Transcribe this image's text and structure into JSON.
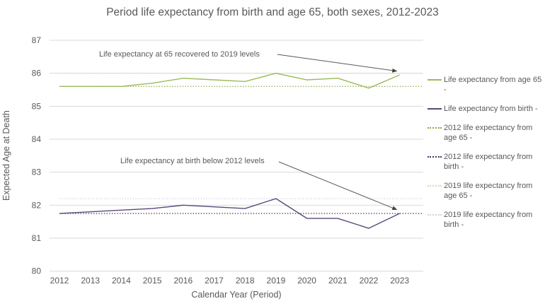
{
  "title": "Period life expectancy from birth and age 65, both sexes, 2012-2023",
  "colors": {
    "text": "#595959",
    "gridline": "#d9d9d9",
    "annotation_line": "#595959",
    "arrowhead": "#404040"
  },
  "chart_data": {
    "type": "line",
    "title": "Period life expectancy from birth and age 65, both sexes, 2012-2023",
    "xlabel": "Calendar Year (Period)",
    "ylabel": "Expected Age at Death",
    "ylim": [
      80,
      87
    ],
    "yticks": [
      87,
      86,
      85,
      84,
      83,
      82,
      81,
      80
    ],
    "grid": true,
    "legend_position": "right",
    "categories": [
      2012,
      2013,
      2014,
      2015,
      2016,
      2017,
      2018,
      2019,
      2020,
      2021,
      2022,
      2023
    ],
    "series": [
      {
        "name": "Life expectancy from age 65 -",
        "type": "line",
        "style": "solid",
        "color": "#9bbb59",
        "values": [
          85.6,
          85.6,
          85.6,
          85.7,
          85.85,
          85.8,
          85.75,
          86.0,
          85.8,
          85.85,
          85.55,
          85.95
        ]
      },
      {
        "name": "Life expectancy from birth -",
        "type": "line",
        "style": "solid",
        "color": "#5a4879",
        "values": [
          81.75,
          81.8,
          81.85,
          81.9,
          82.0,
          81.95,
          81.9,
          82.2,
          81.6,
          81.6,
          81.3,
          81.75
        ]
      },
      {
        "name": "2012 life expectancy from age 65 -",
        "type": "reference-line",
        "style": "dotted",
        "color": "#8aa84e",
        "constant": 85.6
      },
      {
        "name": "2012 life expectancy from birth -",
        "type": "reference-line",
        "style": "dotted",
        "color": "#463366",
        "constant": 81.75
      },
      {
        "name": "2019 life expectancy from age 65 -",
        "type": "reference-line",
        "style": "dotted",
        "color": "#cfe0ae",
        "constant": 86.0
      },
      {
        "name": "2019 life expectancy from birth -",
        "type": "reference-line",
        "style": "dotted",
        "color": "#d6d3dd",
        "constant": 82.2
      }
    ],
    "annotations": [
      {
        "text": "Life expectancy at 65 recovered to 2019 levels",
        "target_year": 2023,
        "target_value": 86.0
      },
      {
        "text": "Life expectancy at birth below 2012 levels",
        "target_year": 2023,
        "target_value": 81.8
      }
    ]
  }
}
